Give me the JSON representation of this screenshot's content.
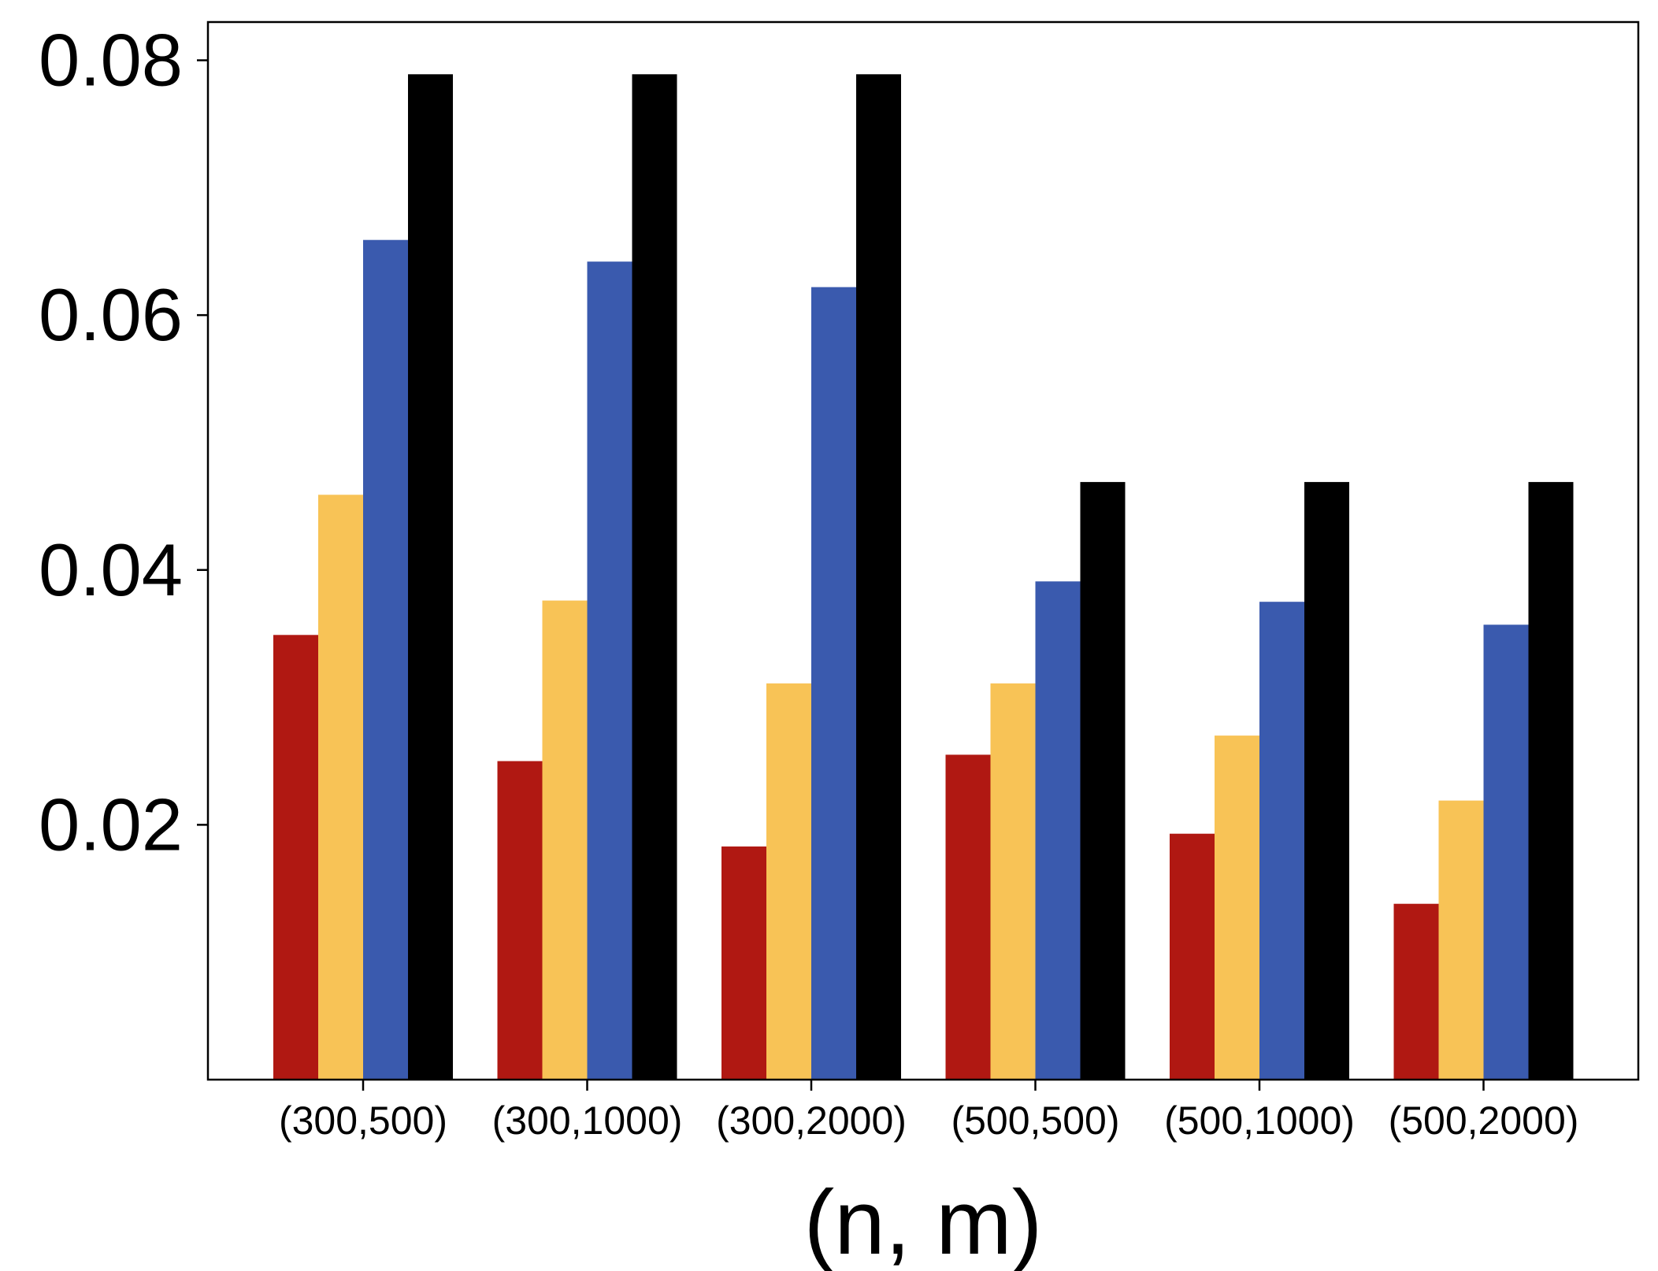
{
  "chart_data": {
    "type": "bar",
    "title": "",
    "xlabel": "(n, m)",
    "ylabel": "",
    "categories": [
      "(300,500)",
      "(300,1000)",
      "(300,2000)",
      "(500,500)",
      "(500,1000)",
      "(500,2000)"
    ],
    "series": [
      {
        "color": "#b01812",
        "values": [
          0.0349,
          0.025,
          0.0183,
          0.0255,
          0.0193,
          0.0138
        ]
      },
      {
        "color": "#f8c356",
        "values": [
          0.0459,
          0.0376,
          0.0311,
          0.0311,
          0.027,
          0.0219
        ]
      },
      {
        "color": "#3a5aae",
        "values": [
          0.0659,
          0.0642,
          0.0622,
          0.0391,
          0.0375,
          0.0357
        ]
      },
      {
        "color": "#000000",
        "values": [
          0.0789,
          0.0789,
          0.0789,
          0.0469,
          0.0469,
          0.0469
        ]
      }
    ],
    "yticks": [
      "0.02",
      "0.04",
      "0.06",
      "0.08"
    ],
    "ylim": [
      0,
      0.083
    ],
    "grid": false,
    "legend": "none"
  }
}
